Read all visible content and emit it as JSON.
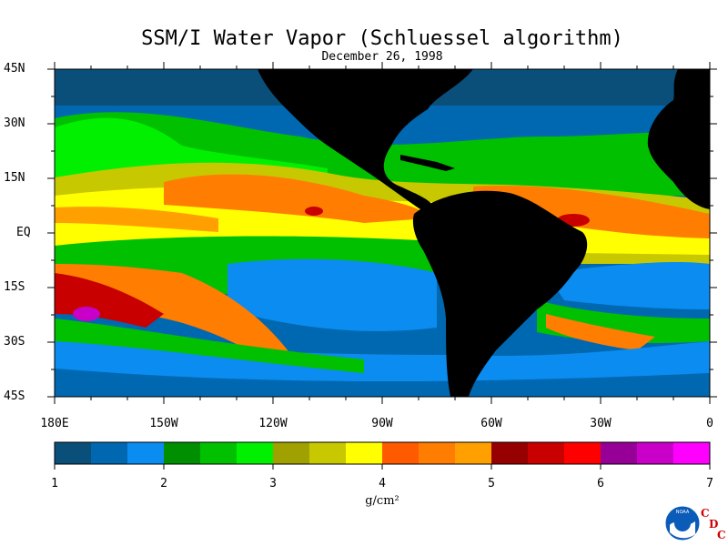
{
  "title": "SSM/I Water Vapor (Schluessel algorithm)",
  "subtitle": "December 26, 1998",
  "latitude_labels": [
    "45N",
    "30N",
    "15N",
    "EQ",
    "15S",
    "30S",
    "45S"
  ],
  "longitude_labels": [
    "180E",
    "150W",
    "120W",
    "90W",
    "60W",
    "30W",
    "0"
  ],
  "colorbar": {
    "tick_labels": [
      "1",
      "2",
      "3",
      "4",
      "5",
      "6",
      "7"
    ],
    "units": "g/cm²",
    "colors": [
      "#0a4f7a",
      "#0068b0",
      "#0a8cf0",
      "#008f00",
      "#00c000",
      "#00f000",
      "#a0a000",
      "#c8c800",
      "#ffff00",
      "#ff5a00",
      "#ff7d00",
      "#ffa000",
      "#960000",
      "#c80000",
      "#ff0000",
      "#960096",
      "#c800c8",
      "#ff00ff"
    ]
  },
  "map": {
    "land_color": "#000000",
    "ocean_scale_colors": [
      "#0a4f7a",
      "#0068b0",
      "#0a8cf0",
      "#008f00",
      "#00c000",
      "#00f000",
      "#a0a000",
      "#c8c800",
      "#ffff00",
      "#ff5a00",
      "#ff7d00",
      "#ffa000",
      "#960000",
      "#c80000",
      "#ff0000",
      "#960096",
      "#c800c8",
      "#ff00ff"
    ]
  },
  "logo": {
    "emblem_text": "NOAA",
    "letters": [
      "C",
      "D",
      "C"
    ]
  }
}
